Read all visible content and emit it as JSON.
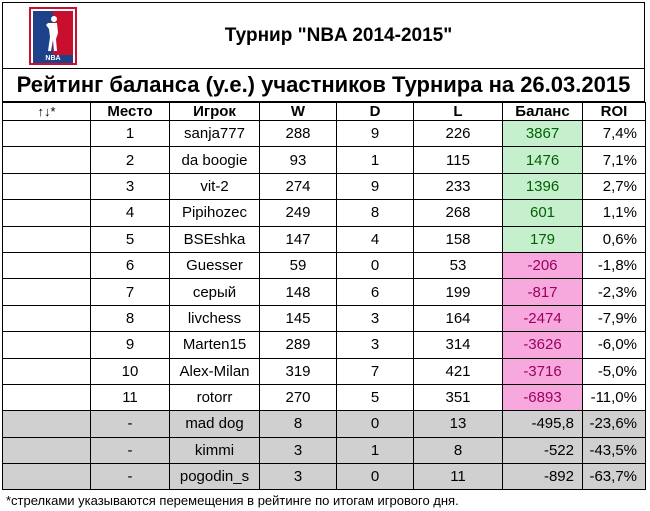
{
  "header": {
    "tournament_title": "Турнир \"NBA 2014-2015\"",
    "rating_title": "Рейтинг баланса (у.е.) участников Турнира на 26.03.2015",
    "logo_text": "NBA"
  },
  "table": {
    "columns": [
      "↑↓*",
      "Место",
      "Игрок",
      "W",
      "D",
      "L",
      "Баланс",
      "ROI"
    ],
    "rows": [
      {
        "arrows": "",
        "place": "1",
        "player": "sanja777",
        "w": "288",
        "d": "9",
        "l": "226",
        "balance": "3867",
        "roi": "7,4%"
      },
      {
        "arrows": "",
        "place": "2",
        "player": "da boogie",
        "w": "93",
        "d": "1",
        "l": "115",
        "balance": "1476",
        "roi": "7,1%"
      },
      {
        "arrows": "",
        "place": "3",
        "player": "vit-2",
        "w": "274",
        "d": "9",
        "l": "233",
        "balance": "1396",
        "roi": "2,7%"
      },
      {
        "arrows": "",
        "place": "4",
        "player": "Pipihozec",
        "w": "249",
        "d": "8",
        "l": "268",
        "balance": "601",
        "roi": "1,1%"
      },
      {
        "arrows": "",
        "place": "5",
        "player": "BSEshka",
        "w": "147",
        "d": "4",
        "l": "158",
        "balance": "179",
        "roi": "0,6%"
      },
      {
        "arrows": "",
        "place": "6",
        "player": "Guesser",
        "w": "59",
        "d": "0",
        "l": "53",
        "balance": "-206",
        "roi": "-1,8%"
      },
      {
        "arrows": "",
        "place": "7",
        "player": "серый",
        "w": "148",
        "d": "6",
        "l": "199",
        "balance": "-817",
        "roi": "-2,3%"
      },
      {
        "arrows": "",
        "place": "8",
        "player": "livchess",
        "w": "145",
        "d": "3",
        "l": "164",
        "balance": "-2474",
        "roi": "-7,9%"
      },
      {
        "arrows": "",
        "place": "9",
        "player": "Marten15",
        "w": "289",
        "d": "3",
        "l": "314",
        "balance": "-3626",
        "roi": "-6,0%"
      },
      {
        "arrows": "",
        "place": "10",
        "player": "Alex-Milan",
        "w": "319",
        "d": "7",
        "l": "421",
        "balance": "-3716",
        "roi": "-5,0%"
      },
      {
        "arrows": "",
        "place": "11",
        "player": "rotorr",
        "w": "270",
        "d": "5",
        "l": "351",
        "balance": "-6893",
        "roi": "-11,0%"
      }
    ],
    "inactive_rows": [
      {
        "arrows": "",
        "place": "-",
        "player": "mad dog",
        "w": "8",
        "d": "0",
        "l": "13",
        "balance": "-495,8",
        "roi": "-23,6%"
      },
      {
        "arrows": "",
        "place": "-",
        "player": "kimmi",
        "w": "3",
        "d": "1",
        "l": "8",
        "balance": "-522",
        "roi": "-43,5%"
      },
      {
        "arrows": "",
        "place": "-",
        "player": "pogodin_s",
        "w": "3",
        "d": "0",
        "l": "11",
        "balance": "-892",
        "roi": "-63,7%"
      }
    ]
  },
  "footnote": "*стрелками указываются перемещения в рейтинге по итогам игрового дня.",
  "colors": {
    "positive_fill": "#c6efce",
    "positive_text": "#006100",
    "negative_fill": "#f7a8dc",
    "negative_text": "#9c0060",
    "inactive_fill": "#d0d0d0"
  }
}
